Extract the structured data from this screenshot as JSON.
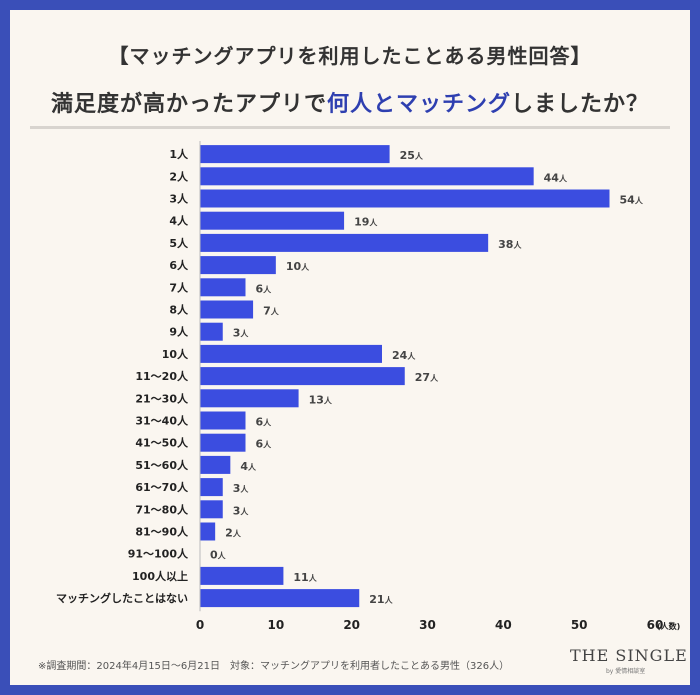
{
  "title": {
    "line1": "【マッチングアプリを利用したことある男性回答】",
    "line2_before": "満足度が高かったアプリで",
    "line2_accent": "何人とマッチング",
    "line2_after": "しましたか？"
  },
  "footnote": "※調査期間：2024年4月15日〜6月21日　対象：マッチングアプリを利用者したことある男性（326人）",
  "brand": "THE SINGLE",
  "brand_sub": "by 愛情相談室",
  "colors": {
    "bar": "#3b4de0",
    "frame": "#3a4fb8",
    "background": "#faf6f0"
  },
  "chart_data": {
    "type": "bar",
    "orientation": "horizontal",
    "categories": [
      "1人",
      "2人",
      "3人",
      "4人",
      "5人",
      "6人",
      "7人",
      "8人",
      "9人",
      "10人",
      "11〜20人",
      "21〜30人",
      "31〜40人",
      "41〜50人",
      "51〜60人",
      "61〜70人",
      "71〜80人",
      "81〜90人",
      "91〜100人",
      "100人以上",
      "マッチングしたことはない"
    ],
    "values": [
      25,
      44,
      54,
      19,
      38,
      10,
      6,
      7,
      3,
      24,
      27,
      13,
      6,
      6,
      4,
      3,
      3,
      2,
      0,
      11,
      21
    ],
    "value_suffix": "人",
    "xlim": [
      0,
      60
    ],
    "xticks": [
      0,
      10,
      20,
      30,
      40,
      50,
      60
    ],
    "xunit": "(人数)",
    "grid": false
  }
}
